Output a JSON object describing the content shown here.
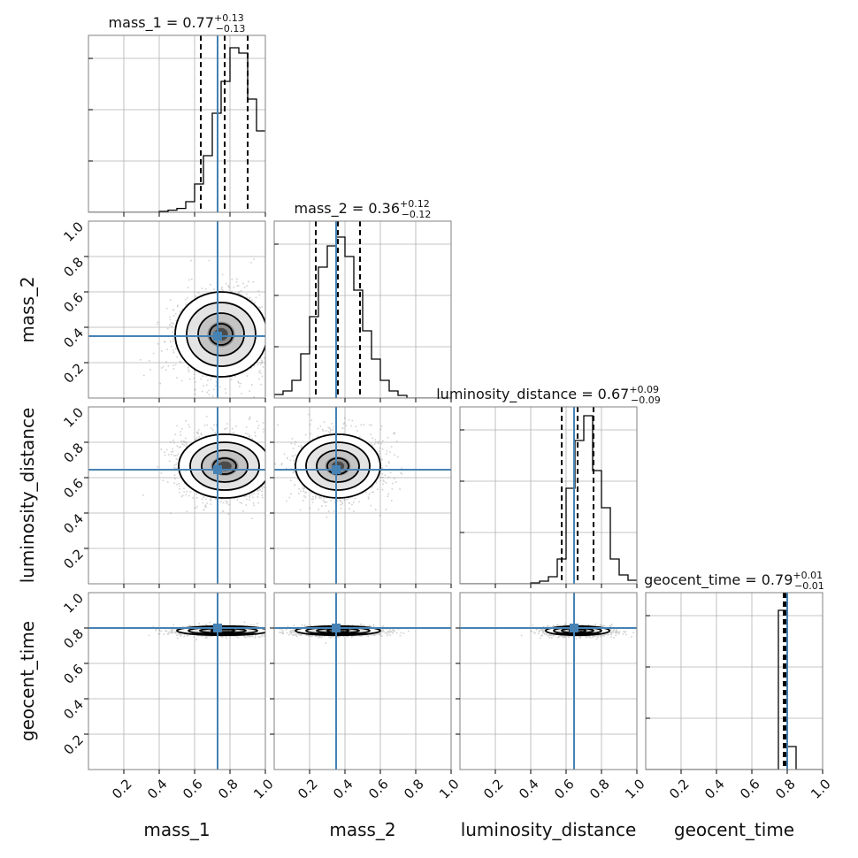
{
  "colors": {
    "truth": "#4682b4",
    "hist": "#000000",
    "grid": "#b0b0b0",
    "frame": "#808080",
    "quantile": "#000000"
  },
  "chart_data": {
    "type": "corner",
    "parameters": [
      "mass_1",
      "mass_2",
      "luminosity_distance",
      "geocent_time"
    ],
    "xlabels": [
      "mass_1",
      "mass_2",
      "luminosity_distance",
      "geocent_time"
    ],
    "ylabels": [
      "",
      "mass_2",
      "luminosity_distance",
      "geocent_time"
    ],
    "range": [
      0,
      1
    ],
    "ticks": [
      0.2,
      0.4,
      0.6,
      0.8,
      1.0
    ],
    "tick_labels": [
      "0.2",
      "0.4",
      "0.6",
      "0.8",
      "1.0"
    ],
    "grid": true,
    "truths": [
      0.73,
      0.35,
      0.645,
      0.8
    ],
    "titles": [
      {
        "param": "mass_1",
        "median": "0.77",
        "plus": "+0.13",
        "minus": "−0.13"
      },
      {
        "param": "mass_2",
        "median": "0.36",
        "plus": "+0.12",
        "minus": "−0.12"
      },
      {
        "param": "luminosity_distance",
        "median": "0.67",
        "plus": "+0.09",
        "minus": "−0.09"
      },
      {
        "param": "geocent_time",
        "median": "0.79",
        "plus": "+0.01",
        "minus": "−0.01"
      }
    ],
    "quantiles": [
      [
        0.635,
        0.77,
        0.9
      ],
      [
        0.235,
        0.36,
        0.485
      ],
      [
        0.575,
        0.665,
        0.755
      ],
      [
        0.78,
        0.79,
        0.8
      ]
    ],
    "histograms": [
      {
        "bins": 20,
        "counts": [
          0,
          0,
          0,
          0,
          0,
          0,
          0,
          0,
          0.005,
          0.012,
          0.022,
          0.06,
          0.16,
          0.32,
          0.56,
          0.74,
          0.93,
          0.9,
          0.64,
          0.46
        ],
        "overflow_last": 0.26
      },
      {
        "bins": 20,
        "counts": [
          0.02,
          0.04,
          0.1,
          0.25,
          0.46,
          0.74,
          0.86,
          0.91,
          0.8,
          0.61,
          0.38,
          0.22,
          0.1,
          0.04,
          0.015,
          0,
          0,
          0,
          0,
          0
        ]
      },
      {
        "bins": 20,
        "counts": [
          0,
          0,
          0,
          0,
          0,
          0,
          0,
          0,
          0.005,
          0.015,
          0.04,
          0.14,
          0.54,
          0.81,
          0.95,
          0.64,
          0.43,
          0.14,
          0.05,
          0.02
        ]
      },
      {
        "bins": 20,
        "counts": [
          0,
          0,
          0,
          0,
          0,
          0,
          0,
          0,
          0,
          0,
          0,
          0,
          0,
          0,
          0,
          0.9,
          0.13,
          0,
          0,
          0
        ]
      }
    ],
    "pairs": [
      {
        "row": 1,
        "col": 0,
        "cx": 0.75,
        "cy": 0.36,
        "sx": 0.13,
        "sy": 0.12
      },
      {
        "row": 2,
        "col": 0,
        "cx": 0.77,
        "cy": 0.665,
        "sx": 0.13,
        "sy": 0.09
      },
      {
        "row": 2,
        "col": 1,
        "cx": 0.36,
        "cy": 0.665,
        "sx": 0.12,
        "sy": 0.09
      },
      {
        "row": 3,
        "col": 0,
        "cx": 0.76,
        "cy": 0.785,
        "sx": 0.13,
        "sy": 0.013
      },
      {
        "row": 3,
        "col": 1,
        "cx": 0.36,
        "cy": 0.785,
        "sx": 0.12,
        "sy": 0.013
      },
      {
        "row": 3,
        "col": 2,
        "cx": 0.665,
        "cy": 0.785,
        "sx": 0.09,
        "sy": 0.013
      }
    ]
  }
}
